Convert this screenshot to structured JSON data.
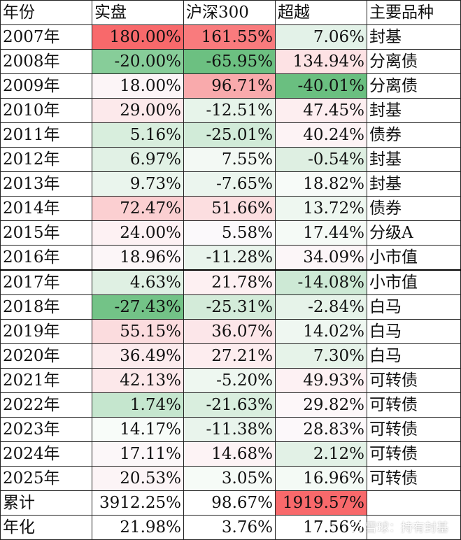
{
  "headers": [
    "年份",
    "实盘",
    "沪深300",
    "超越",
    "主要品种"
  ],
  "rows": [
    {
      "year": "2007年",
      "actual": "180.00%",
      "csi300": "161.55%",
      "excess": "7.06%",
      "kind": "封基",
      "colors": [
        "#f8696b",
        "#f97b7d",
        "#e3f2e8"
      ]
    },
    {
      "year": "2008年",
      "actual": "-20.00%",
      "csi300": "-65.95%",
      "excess": "134.94%",
      "kind": "分离债",
      "colors": [
        "#87cd99",
        "#6cc081",
        "#fde2e4"
      ]
    },
    {
      "year": "2009年",
      "actual": "18.00%",
      "csi300": "96.71%",
      "excess": "-40.01%",
      "kind": "分离债",
      "colors": [
        "#fcf5f7",
        "#f9aaac",
        "#6abf80"
      ]
    },
    {
      "year": "2010年",
      "actual": "29.00%",
      "csi300": "-12.51%",
      "excess": "47.45%",
      "kind": "封基",
      "colors": [
        "#fce9eb",
        "#e7f4ea",
        "#fdeef0"
      ]
    },
    {
      "year": "2011年",
      "actual": "5.16%",
      "csi300": "-25.01%",
      "excess": "40.24%",
      "kind": "债券",
      "colors": [
        "#d8eedd",
        "#d1ebd8",
        "#fdf3f5"
      ]
    },
    {
      "year": "2012年",
      "actual": "6.97%",
      "csi300": "7.55%",
      "excess": "-0.54%",
      "kind": "封基",
      "colors": [
        "#e1f1e5",
        "#f3f9f4",
        "#deefe2"
      ]
    },
    {
      "year": "2013年",
      "actual": "9.73%",
      "csi300": "-7.65%",
      "excess": "18.82%",
      "kind": "封基",
      "colors": [
        "#eaf5ed",
        "#ebf5ee",
        "#f7fbf8"
      ]
    },
    {
      "year": "2014年",
      "actual": "72.47%",
      "csi300": "51.66%",
      "excess": "13.72%",
      "kind": "债券",
      "colors": [
        "#fbcfd1",
        "#fcdee0",
        "#eef7f0"
      ]
    },
    {
      "year": "2015年",
      "actual": "24.00%",
      "csi300": "5.58%",
      "excess": "17.44%",
      "kind": "分级A",
      "colors": [
        "#fdf1f3",
        "#fbf9fb",
        "#f5faf6"
      ]
    },
    {
      "year": "2016年",
      "actual": "18.96%",
      "csi300": "-11.28%",
      "excess": "34.09%",
      "kind": "小市值",
      "colors": [
        "#fcf6f8",
        "#e9f4ec",
        "#fcf6f8"
      ]
    },
    {
      "year": "2017年",
      "actual": "4.63%",
      "csi300": "21.78%",
      "excess": "-14.08%",
      "kind": "小市值",
      "colors": [
        "#dff0e3",
        "#fdf0f2",
        "#cde9d5"
      ]
    },
    {
      "year": "2018年",
      "actual": "-27.43%",
      "csi300": "-25.31%",
      "excess": "-2.84%",
      "kind": "白马",
      "colors": [
        "#73c387",
        "#d3ebd9",
        "#e6f3e9"
      ]
    },
    {
      "year": "2019年",
      "actual": "55.15%",
      "csi300": "36.07%",
      "excess": "14.02%",
      "kind": "白马",
      "colors": [
        "#fbdcde",
        "#fce6e9",
        "#eff7f1"
      ]
    },
    {
      "year": "2020年",
      "actual": "36.49%",
      "csi300": "27.21%",
      "excess": "7.30%",
      "kind": "白马",
      "colors": [
        "#fcebed",
        "#fdedef",
        "#e6f3e9"
      ]
    },
    {
      "year": "2021年",
      "actual": "42.13%",
      "csi300": "-5.20%",
      "excess": "49.93%",
      "kind": "可转债",
      "colors": [
        "#fce8ea",
        "#eef7f0",
        "#fdf1f3"
      ]
    },
    {
      "year": "2022年",
      "actual": "1.74%",
      "csi300": "-21.63%",
      "excess": "29.82%",
      "kind": "可转债",
      "colors": [
        "#c5e6ce",
        "#d9eede",
        "#fdf7f9"
      ]
    },
    {
      "year": "2023年",
      "actual": "14.17%",
      "csi300": "-11.38%",
      "excess": "28.83%",
      "kind": "可转债",
      "colors": [
        "#f8fcf9",
        "#e9f4ec",
        "#fcf8fa"
      ]
    },
    {
      "year": "2024年",
      "actual": "17.11%",
      "csi300": "14.68%",
      "excess": "2.12%",
      "kind": "可转债",
      "colors": [
        "#fcf7f9",
        "#fdf3f5",
        "#e2f1e6"
      ]
    },
    {
      "year": "2025年",
      "actual": "20.53%",
      "csi300": "3.05%",
      "excess": "16.96%",
      "kind": "可转债",
      "colors": [
        "#fcf4f6",
        "#f6fbf7",
        "#f4faf5"
      ]
    },
    {
      "year": "累计",
      "actual": "3912.25%",
      "csi300": "98.67%",
      "excess": "1919.57%",
      "kind": "",
      "colors": [
        "#ffffff",
        "#ffffff",
        "#f8696b"
      ]
    },
    {
      "year": "年化",
      "actual": "21.98%",
      "csi300": "3.76%",
      "excess": "17.56%",
      "kind": "",
      "colors": [
        "#ffffff",
        "#ffffff",
        "#ffffff"
      ]
    }
  ],
  "watermark": "雪球：持有封基"
}
